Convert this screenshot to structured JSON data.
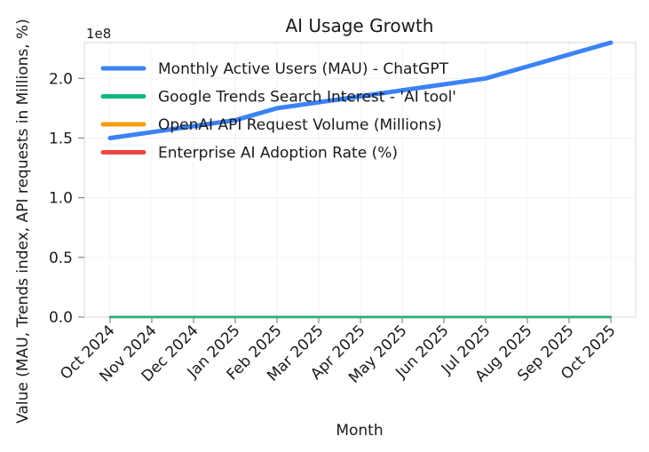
{
  "chart_data": {
    "type": "line",
    "title": "AI Usage Growth",
    "xlabel": "Month",
    "ylabel": "Value (MAU, Trends index, API requests in Millions, %)",
    "offset_label": "1e8",
    "y_scale_factor": 100000000,
    "categories": [
      "Oct 2024",
      "Nov 2024",
      "Dec 2024",
      "Jan 2025",
      "Feb 2025",
      "Mar 2025",
      "Apr 2025",
      "May 2025",
      "Jun 2025",
      "Jul 2025",
      "Aug 2025",
      "Sep 2025",
      "Oct 2025"
    ],
    "ylim": [
      0,
      230000000
    ],
    "yticks": [
      0,
      50000000,
      100000000,
      150000000,
      200000000
    ],
    "ytick_labels": [
      "0.0",
      "0.5",
      "1.0",
      "1.5",
      "2.0"
    ],
    "grid": true,
    "legend_position": "top-left",
    "series": [
      {
        "name": "Monthly Active Users (MAU) - ChatGPT",
        "color": "#3b82f6",
        "values": [
          150000000,
          155000000,
          160000000,
          165000000,
          175000000,
          180000000,
          185000000,
          190000000,
          195000000,
          200000000,
          210000000,
          220000000,
          230000000
        ]
      },
      {
        "name": "Google Trends Search Interest - 'AI tool'",
        "color": "#10b981",
        "values": [
          60,
          62,
          65,
          68,
          70,
          72,
          75,
          78,
          80,
          82,
          85,
          88,
          90
        ]
      },
      {
        "name": "OpenAI API Request Volume (Millions)",
        "color": "#f59e0b",
        "values": [
          500,
          550,
          600,
          650,
          700,
          750,
          800,
          850,
          900,
          950,
          1000,
          1050,
          1100
        ]
      },
      {
        "name": "Enterprise AI Adoption Rate (%)",
        "color": "#ef4444",
        "values": [
          20,
          21,
          22,
          23,
          24,
          25,
          26,
          27,
          28,
          29,
          30,
          31,
          32
        ]
      }
    ]
  }
}
